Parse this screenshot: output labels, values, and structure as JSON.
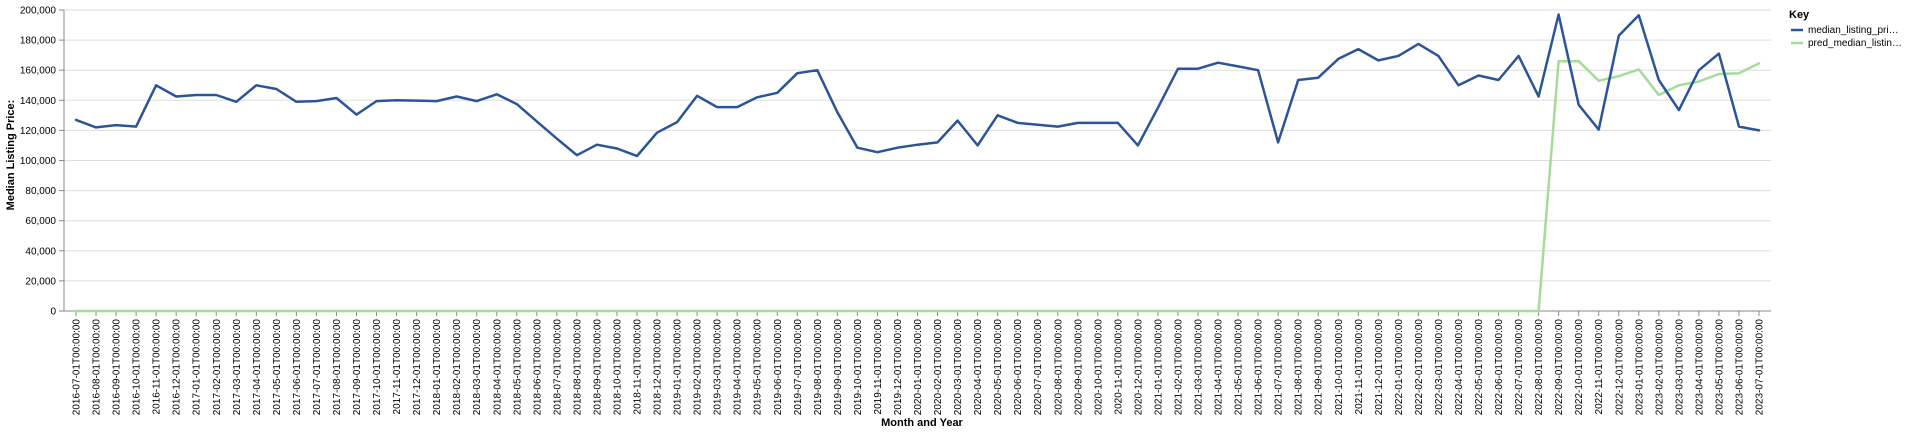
{
  "chart_data": {
    "type": "line",
    "title": "",
    "xlabel": "Month and Year",
    "ylabel": "Median Listing Price:",
    "ylim": [
      0,
      200000
    ],
    "yticks": [
      "0",
      "20,000",
      "40,000",
      "60,000",
      "80,000",
      "100,000",
      "120,000",
      "140,000",
      "160,000",
      "180,000",
      "200,000"
    ],
    "grid": true,
    "legend": {
      "title": "Key",
      "position": "right"
    },
    "x": [
      "2016-07-01T00:00:00",
      "2016-08-01T00:00:00",
      "2016-09-01T00:00:00",
      "2016-10-01T00:00:00",
      "2016-11-01T00:00:00",
      "2016-12-01T00:00:00",
      "2017-01-01T00:00:00",
      "2017-02-01T00:00:00",
      "2017-03-01T00:00:00",
      "2017-04-01T00:00:00",
      "2017-05-01T00:00:00",
      "2017-06-01T00:00:00",
      "2017-07-01T00:00:00",
      "2017-08-01T00:00:00",
      "2017-09-01T00:00:00",
      "2017-10-01T00:00:00",
      "2017-11-01T00:00:00",
      "2017-12-01T00:00:00",
      "2018-01-01T00:00:00",
      "2018-02-01T00:00:00",
      "2018-03-01T00:00:00",
      "2018-04-01T00:00:00",
      "2018-05-01T00:00:00",
      "2018-06-01T00:00:00",
      "2018-07-01T00:00:00",
      "2018-08-01T00:00:00",
      "2018-09-01T00:00:00",
      "2018-10-01T00:00:00",
      "2018-11-01T00:00:00",
      "2018-12-01T00:00:00",
      "2019-01-01T00:00:00",
      "2019-02-01T00:00:00",
      "2019-03-01T00:00:00",
      "2019-04-01T00:00:00",
      "2019-05-01T00:00:00",
      "2019-06-01T00:00:00",
      "2019-07-01T00:00:00",
      "2019-08-01T00:00:00",
      "2019-09-01T00:00:00",
      "2019-10-01T00:00:00",
      "2019-11-01T00:00:00",
      "2019-12-01T00:00:00",
      "2020-01-01T00:00:00",
      "2020-02-01T00:00:00",
      "2020-03-01T00:00:00",
      "2020-04-01T00:00:00",
      "2020-05-01T00:00:00",
      "2020-06-01T00:00:00",
      "2020-07-01T00:00:00",
      "2020-08-01T00:00:00",
      "2020-09-01T00:00:00",
      "2020-10-01T00:00:00",
      "2020-11-01T00:00:00",
      "2020-12-01T00:00:00",
      "2021-01-01T00:00:00",
      "2021-02-01T00:00:00",
      "2021-03-01T00:00:00",
      "2021-04-01T00:00:00",
      "2021-05-01T00:00:00",
      "2021-06-01T00:00:00",
      "2021-07-01T00:00:00",
      "2021-08-01T00:00:00",
      "2021-09-01T00:00:00",
      "2021-10-01T00:00:00",
      "2021-11-01T00:00:00",
      "2021-12-01T00:00:00",
      "2022-01-01T00:00:00",
      "2022-02-01T00:00:00",
      "2022-03-01T00:00:00",
      "2022-04-01T00:00:00",
      "2022-05-01T00:00:00",
      "2022-06-01T00:00:00",
      "2022-07-01T00:00:00",
      "2022-08-01T00:00:00",
      "2022-09-01T00:00:00",
      "2022-10-01T00:00:00",
      "2022-11-01T00:00:00",
      "2022-12-01T00:00:00",
      "2023-01-01T00:00:00",
      "2023-02-01T00:00:00",
      "2023-03-01T00:00:00",
      "2023-04-01T00:00:00",
      "2023-05-01T00:00:00",
      "2023-06-01T00:00:00",
      "2023-07-01T00:00:00"
    ],
    "series": [
      {
        "name": "median_listing_pri…",
        "color": "#2b5597",
        "values": [
          127000,
          122000,
          123500,
          122500,
          150000,
          142500,
          143500,
          143500,
          139000,
          150000,
          147500,
          139000,
          139500,
          141500,
          130500,
          139500,
          140000,
          139800,
          139500,
          142500,
          139500,
          144000,
          137500,
          126000,
          114500,
          103500,
          110500,
          108000,
          103000,
          118500,
          125500,
          143000,
          135500,
          135500,
          142000,
          145000,
          158000,
          160000,
          132000,
          108500,
          105500,
          108500,
          110500,
          112000,
          126500,
          110000,
          130000,
          125000,
          123800,
          122500,
          125000,
          125000,
          125000,
          110000,
          135000,
          161000,
          161000,
          165000,
          162500,
          160000,
          112000,
          153500,
          155000,
          167500,
          174000,
          166500,
          169500,
          177500,
          169500,
          150000,
          156500,
          153500,
          169500,
          142500,
          197000,
          137000,
          120500,
          183000,
          196500,
          153500,
          133500,
          160000,
          171000,
          122500,
          120000
        ]
      },
      {
        "name": "pred_median_listin…",
        "color": "#a5dc99",
        "values": [
          0,
          0,
          0,
          0,
          0,
          0,
          0,
          0,
          0,
          0,
          0,
          0,
          0,
          0,
          0,
          0,
          0,
          0,
          0,
          0,
          0,
          0,
          0,
          0,
          0,
          0,
          0,
          0,
          0,
          0,
          0,
          0,
          0,
          0,
          0,
          0,
          0,
          0,
          0,
          0,
          0,
          0,
          0,
          0,
          0,
          0,
          0,
          0,
          0,
          0,
          0,
          0,
          0,
          0,
          0,
          0,
          0,
          0,
          0,
          0,
          0,
          0,
          0,
          0,
          0,
          0,
          0,
          0,
          0,
          0,
          0,
          0,
          0,
          0,
          166000,
          166000,
          153000,
          156000,
          160500,
          143500,
          150000,
          152500,
          157500,
          158000,
          164500
        ]
      }
    ]
  }
}
